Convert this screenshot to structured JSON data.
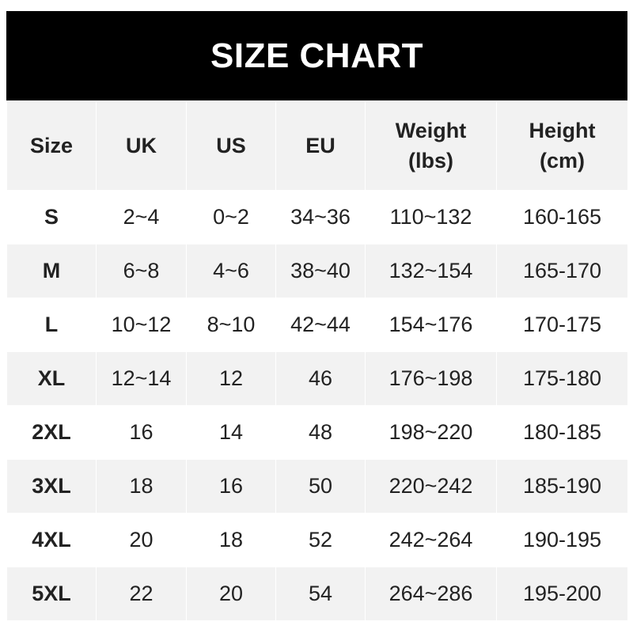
{
  "title": "SIZE CHART",
  "columns": [
    "Size",
    "UK",
    "US",
    "EU",
    "Weight\n(lbs)",
    "Height\n(cm)"
  ],
  "colors": {
    "header_bg": "#000000",
    "header_text": "#ffffff",
    "row_alt": "#f2f2f2",
    "row_plain": "#ffffff"
  },
  "rows": [
    [
      "S",
      "2~4",
      "0~2",
      "34~36",
      "110~132",
      "160-165"
    ],
    [
      "M",
      "6~8",
      "4~6",
      "38~40",
      "132~154",
      "165-170"
    ],
    [
      "L",
      "10~12",
      "8~10",
      "42~44",
      "154~176",
      "170-175"
    ],
    [
      "XL",
      "12~14",
      "12",
      "46",
      "176~198",
      "175-180"
    ],
    [
      "2XL",
      "16",
      "14",
      "48",
      "198~220",
      "180-185"
    ],
    [
      "3XL",
      "18",
      "16",
      "50",
      "220~242",
      "185-190"
    ],
    [
      "4XL",
      "20",
      "18",
      "52",
      "242~264",
      "190-195"
    ],
    [
      "5XL",
      "22",
      "20",
      "54",
      "264~286",
      "195-200"
    ]
  ]
}
